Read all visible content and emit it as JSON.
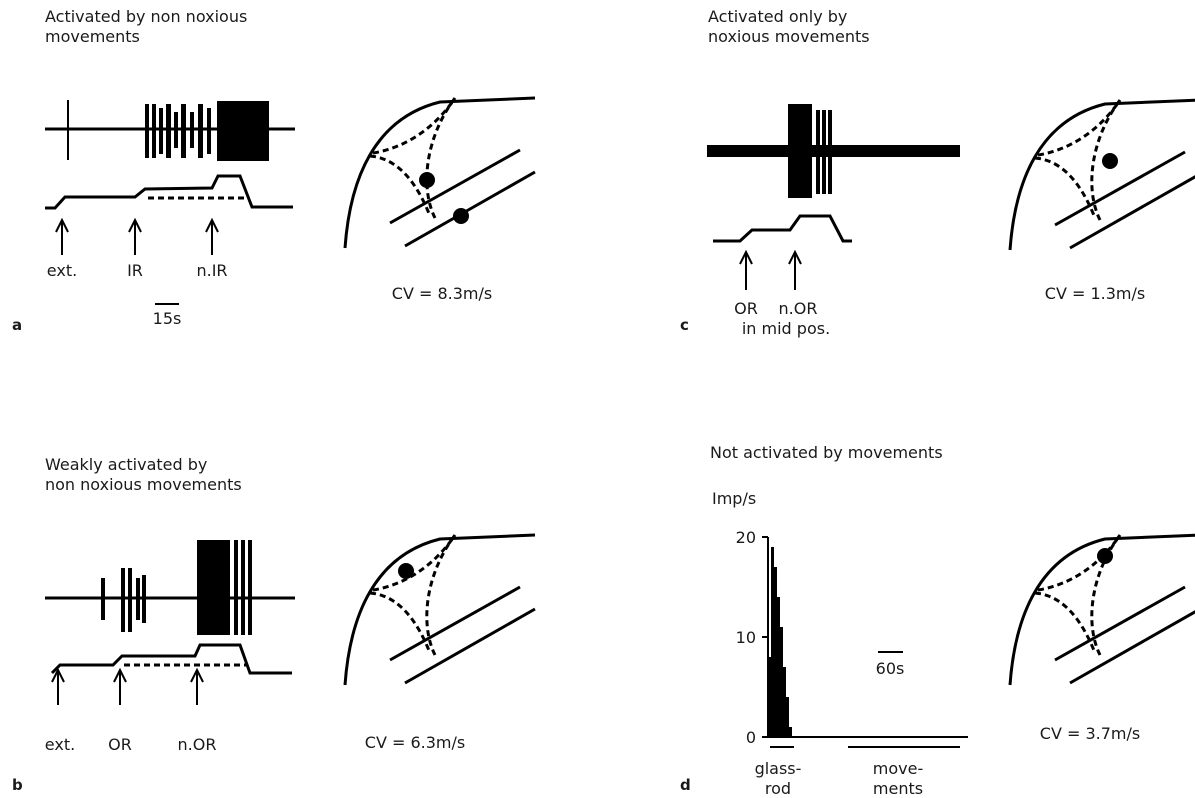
{
  "panels": [
    {
      "letter": "a",
      "title": [
        "Activated by non noxious",
        "movements"
      ],
      "markers": [
        "ext.",
        "IR",
        "n.IR"
      ],
      "scale": "15s",
      "cv": "CV = 8.3m/s"
    },
    {
      "letter": "b",
      "title": [
        "Weakly activated by",
        "non noxious movements"
      ],
      "markers": [
        "ext.",
        "OR",
        "n.OR"
      ],
      "cv": "CV = 6.3m/s"
    },
    {
      "letter": "c",
      "title": [
        "Activated only by",
        "noxious movements"
      ],
      "markers": [
        "OR",
        "n.OR"
      ],
      "note": "in mid pos.",
      "cv": "CV = 1.3m/s"
    },
    {
      "letter": "d",
      "title": [
        "Not activated by movements"
      ],
      "histogram": {
        "ylabel": "Imp/s",
        "ylim": [
          0,
          20
        ],
        "yticks": [
          0,
          10,
          20
        ],
        "values": [
          8,
          19,
          17,
          14,
          11,
          7,
          4,
          1
        ]
      },
      "scale": "60s",
      "stimuli": [
        [
          "glass-",
          "rod"
        ],
        [
          "move-",
          "ments"
        ]
      ],
      "cv": "CV = 3.7m/s"
    }
  ]
}
